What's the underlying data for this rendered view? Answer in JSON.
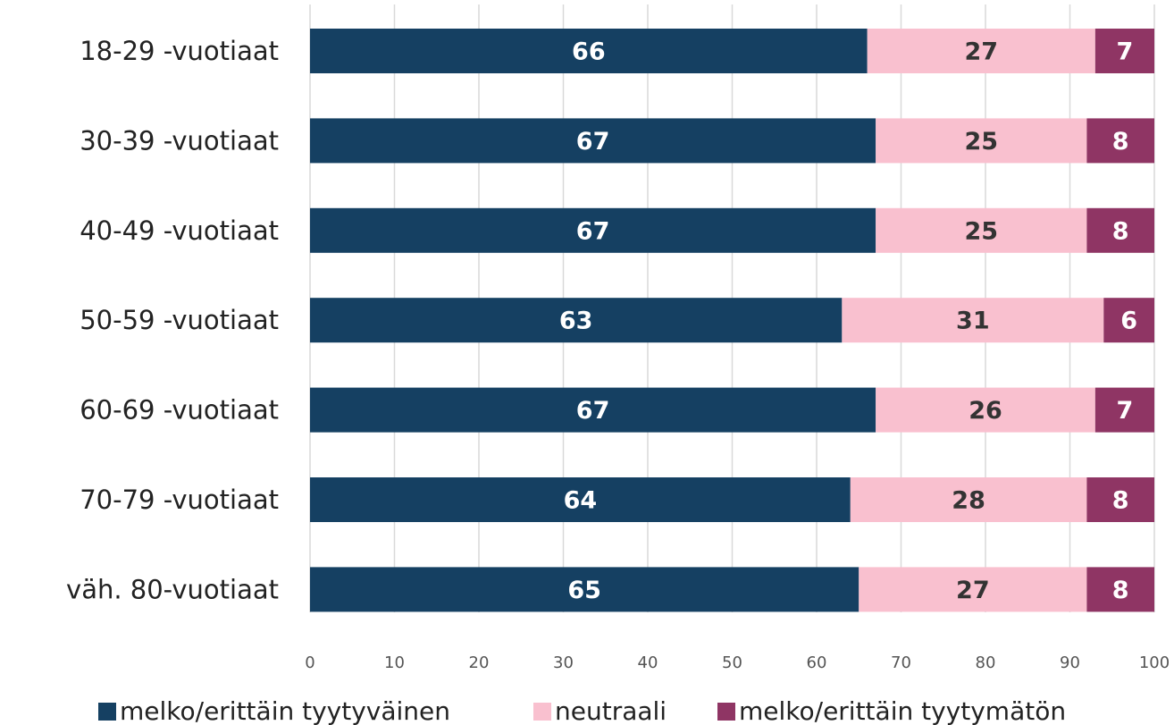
{
  "chart_data": {
    "type": "stacked_bar_horizontal",
    "categories": [
      "18-29 -vuotiaat",
      "30-39 -vuotiaat",
      "40-49 -vuotiaat",
      "50-59 -vuotiaat",
      "60-69 -vuotiaat",
      "70-79 -vuotiaat",
      "väh. 80-vuotiaat"
    ],
    "series": [
      {
        "name": "melko/erittäin tyytyväinen",
        "color": "#154062",
        "values": [
          66,
          67,
          67,
          63,
          67,
          64,
          65
        ]
      },
      {
        "name": "neutraali",
        "color": "#f9c0cf",
        "values": [
          27,
          25,
          25,
          31,
          26,
          28,
          27
        ]
      },
      {
        "name": "melko/erittäin tyytymätön",
        "color": "#8f3564",
        "values": [
          7,
          8,
          8,
          6,
          7,
          8,
          8
        ]
      }
    ],
    "xlim": [
      0,
      100
    ],
    "xticks": [
      0,
      10,
      20,
      30,
      40,
      50,
      60,
      70,
      80,
      90,
      100
    ],
    "grid": true,
    "legend": "bottom"
  }
}
